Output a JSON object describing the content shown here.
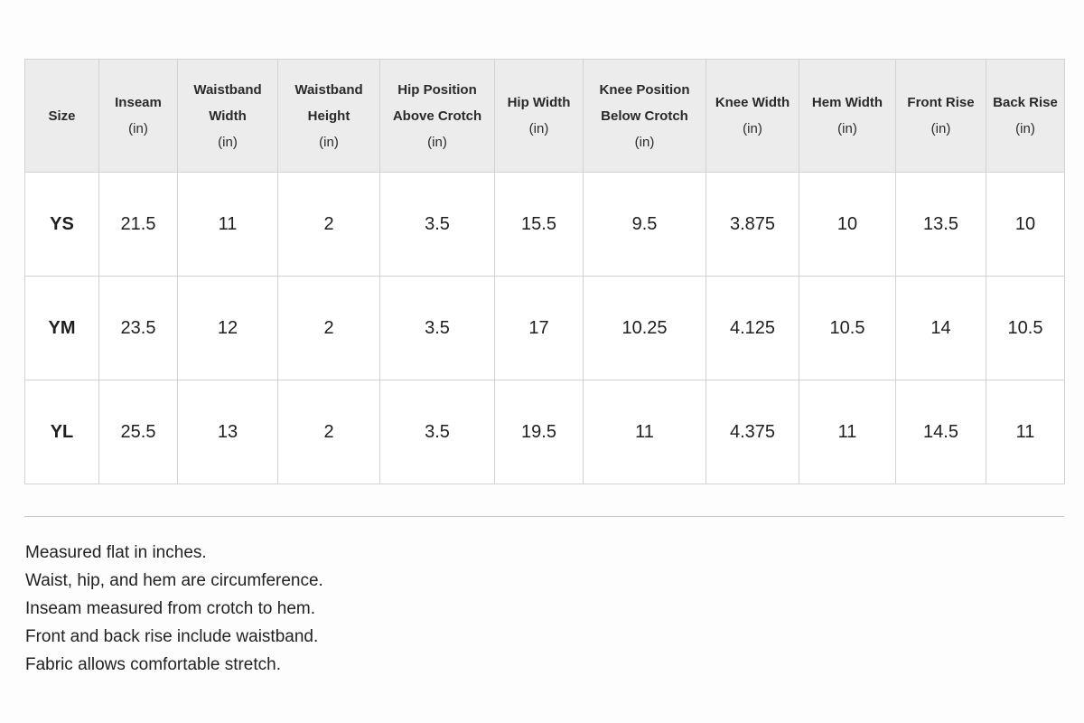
{
  "table": {
    "headers": [
      [
        "Size"
      ],
      [
        "Inseam",
        "(in)"
      ],
      [
        "Waistband",
        "Width",
        "(in)"
      ],
      [
        "Waistband",
        "Height",
        "(in)"
      ],
      [
        "Hip Position",
        "Above Crotch",
        "(in)"
      ],
      [
        "Hip Width",
        "(in)"
      ],
      [
        "Knee Position",
        "Below Crotch",
        "(in)"
      ],
      [
        "Knee Width",
        "(in)"
      ],
      [
        "Hem Width",
        "(in)"
      ],
      [
        "Front Rise",
        "(in)"
      ],
      [
        "Back Rise",
        "(in)"
      ]
    ],
    "rows": [
      [
        "YS",
        21.5,
        11,
        2,
        3.5,
        15.5,
        9.5,
        3.875,
        10,
        13.5,
        10
      ],
      [
        "YM",
        23.5,
        12,
        2,
        3.5,
        17,
        10.25,
        4.125,
        10.5,
        14,
        10.5
      ],
      [
        "YL",
        25.5,
        13,
        2,
        3.5,
        19.5,
        11,
        4.375,
        11,
        14.5,
        11
      ]
    ]
  },
  "notes": [
    "Measured flat in inches.",
    "Waist, hip, and hem are circumference.",
    "Inseam measured from crotch to hem.",
    "Front and back rise include waistband.",
    "Fabric allows comfortable stretch."
  ]
}
